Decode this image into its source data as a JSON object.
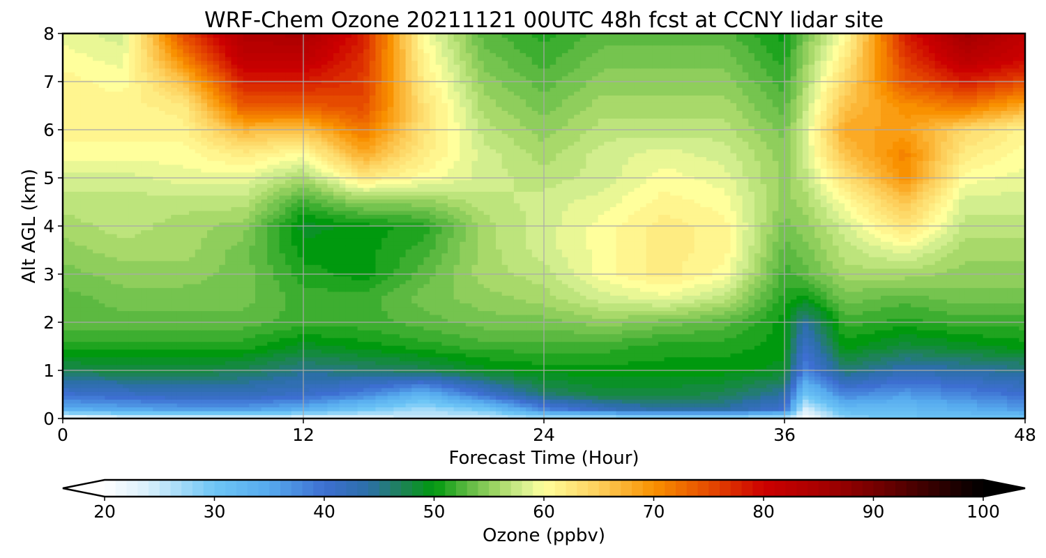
{
  "chart_data": {
    "type": "heatmap",
    "title": "WRF-Chem Ozone  20211121 00UTC 48h fcst at CCNY lidar site",
    "xlabel": "Forecast Time (Hour)",
    "ylabel": "Alt AGL (km)",
    "xlim": [
      0,
      48
    ],
    "ylim": [
      0,
      8
    ],
    "xticks": [
      0,
      12,
      24,
      36,
      48
    ],
    "yticks": [
      0,
      1,
      2,
      3,
      4,
      5,
      6,
      7,
      8
    ],
    "grid": true,
    "x": [
      0,
      3,
      6,
      9,
      12,
      15,
      18,
      21,
      24,
      27,
      30,
      33,
      36,
      37,
      39,
      42,
      45,
      48
    ],
    "y": [
      0,
      0.2,
      0.5,
      1,
      1.5,
      2,
      2.5,
      3,
      3.5,
      4,
      4.5,
      5,
      5.5,
      6,
      6.5,
      7,
      7.5,
      8
    ],
    "z": [
      [
        20,
        22,
        22,
        22,
        22,
        23,
        24,
        24,
        26,
        25,
        25,
        25,
        25,
        20,
        28,
        30,
        30,
        30
      ],
      [
        34,
        35,
        36,
        36,
        34,
        30,
        27,
        30,
        38,
        42,
        44,
        44,
        40,
        24,
        32,
        32,
        34,
        36
      ],
      [
        40,
        41,
        42,
        42,
        41,
        38,
        33,
        40,
        46,
        48,
        48,
        47,
        44,
        30,
        38,
        36,
        38,
        40
      ],
      [
        47,
        48,
        48,
        47,
        45,
        46,
        47,
        49,
        50,
        50,
        50,
        50,
        49,
        38,
        46,
        43,
        44,
        45
      ],
      [
        51,
        51,
        51,
        51,
        49,
        50,
        51,
        52,
        52,
        52,
        51,
        51,
        50,
        41,
        50,
        48,
        49,
        50
      ],
      [
        53,
        53,
        53,
        53,
        52,
        52,
        53,
        54,
        54,
        55,
        54,
        53,
        50,
        44,
        52,
        51,
        52,
        52
      ],
      [
        53,
        54,
        54,
        54,
        52,
        52,
        54,
        55,
        56,
        58,
        59,
        57,
        51,
        50,
        54,
        53,
        54,
        54
      ],
      [
        54,
        55,
        55,
        54,
        51,
        50,
        53,
        56,
        57,
        60,
        62,
        60,
        52,
        53,
        56,
        56,
        55,
        55
      ],
      [
        55,
        56,
        56,
        54,
        50,
        50,
        52,
        56,
        58,
        60,
        62,
        61,
        53,
        54,
        57,
        59,
        56,
        56
      ],
      [
        56,
        57,
        56,
        55,
        49,
        50,
        51,
        56,
        58,
        60,
        62,
        61,
        54,
        55,
        58,
        63,
        57,
        57
      ],
      [
        57,
        57,
        57,
        57,
        52,
        55,
        55,
        57,
        58,
        59,
        61,
        60,
        55,
        56,
        60,
        66,
        58,
        58
      ],
      [
        58,
        58,
        59,
        59,
        56,
        62,
        60,
        58,
        57,
        58,
        60,
        59,
        55,
        57,
        63,
        70,
        60,
        59
      ],
      [
        60,
        60,
        60,
        62,
        60,
        68,
        62,
        58,
        56,
        58,
        59,
        58,
        55,
        58,
        66,
        71,
        62,
        60
      ],
      [
        61,
        61,
        61,
        67,
        66,
        72,
        63,
        57,
        55,
        57,
        57,
        57,
        54,
        58,
        68,
        69,
        64,
        61
      ],
      [
        61,
        61,
        62,
        74,
        74,
        75,
        63,
        56,
        54,
        56,
        56,
        56,
        53,
        57,
        66,
        70,
        72,
        68
      ],
      [
        61,
        60,
        66,
        78,
        78,
        76,
        62,
        55,
        53,
        55,
        55,
        55,
        52,
        56,
        64,
        74,
        78,
        75
      ],
      [
        60,
        59,
        71,
        82,
        82,
        77,
        61,
        54,
        52,
        54,
        54,
        54,
        51,
        55,
        62,
        76,
        83,
        80
      ],
      [
        59,
        58,
        75,
        84,
        85,
        78,
        60,
        53,
        51,
        53,
        53,
        53,
        50,
        54,
        60,
        78,
        86,
        82
      ]
    ],
    "colorbar": {
      "label": "Ozone  (ppbv)",
      "min": 20,
      "max": 100,
      "ticks": [
        20,
        30,
        40,
        50,
        60,
        70,
        80,
        90,
        100
      ],
      "extend": "both",
      "orientation": "horizontal",
      "stops": [
        [
          20,
          "#ffffff"
        ],
        [
          24,
          "#d8effb"
        ],
        [
          30,
          "#6ec6f6"
        ],
        [
          35,
          "#56aaee"
        ],
        [
          40,
          "#3d6fd1"
        ],
        [
          44,
          "#2c6fa8"
        ],
        [
          47,
          "#1e8258"
        ],
        [
          50,
          "#00990e"
        ],
        [
          53,
          "#5cb941"
        ],
        [
          56,
          "#a8d96a"
        ],
        [
          58,
          "#d2ee8e"
        ],
        [
          60,
          "#ffff9c"
        ],
        [
          65,
          "#fdcf5c"
        ],
        [
          70,
          "#f99100"
        ],
        [
          75,
          "#e64b00"
        ],
        [
          80,
          "#cc0000"
        ],
        [
          85,
          "#aa0000"
        ],
        [
          90,
          "#770000"
        ],
        [
          95,
          "#3a0000"
        ],
        [
          100,
          "#000000"
        ]
      ]
    }
  }
}
